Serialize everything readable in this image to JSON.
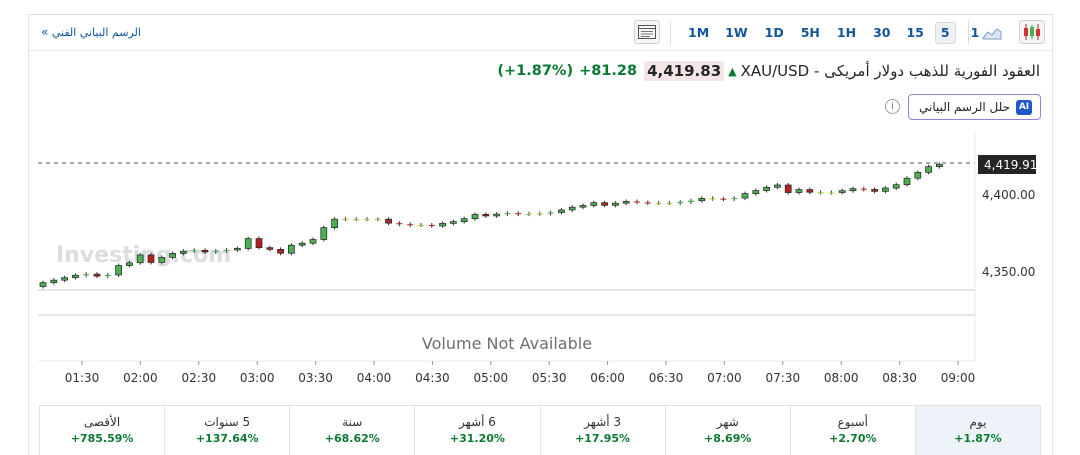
{
  "toolbar": {
    "technical_link": "الرسم البياني الفني",
    "timeframes": [
      "1M",
      "1W",
      "1D",
      "5H",
      "1H",
      "30",
      "15",
      "5",
      "1"
    ],
    "active_timeframe": "5"
  },
  "instrument": {
    "title": "XAU/USD - العقود الفورية للذهب دولار أمريكى",
    "price": "4,419.83",
    "change": "+81.28",
    "change_pct": "(+1.87%)",
    "direction": "up"
  },
  "ai_button": {
    "label": "حلل الرسم البياني",
    "badge": "AI"
  },
  "chart_data": {
    "type": "candlestick",
    "watermark": "Investing.com",
    "volume_text": "Volume Not Available",
    "last_price_label": "4,419.91",
    "y_ticks": [
      "4,400.00",
      "4,350.00"
    ],
    "y_tick_values": [
      4400,
      4350
    ],
    "x_ticks": [
      "01:30",
      "02:00",
      "02:30",
      "03:00",
      "03:30",
      "04:00",
      "04:30",
      "05:00",
      "05:30",
      "06:00",
      "06:30",
      "07:00",
      "07:30",
      "08:00",
      "08:30",
      "09:00"
    ],
    "candles": [
      {
        "o": 4340.6,
        "c": 4343.1
      },
      {
        "o": 4343.1,
        "c": 4344.7
      },
      {
        "o": 4344.7,
        "c": 4346.3
      },
      {
        "o": 4346.3,
        "c": 4347.9
      },
      {
        "o": 4347.9,
        "c": 4348.6
      },
      {
        "o": 4348.6,
        "c": 4347.3
      },
      {
        "o": 4347.3,
        "c": 4348.1
      },
      {
        "o": 4348.1,
        "c": 4354.2
      },
      {
        "o": 4354.2,
        "c": 4356.0
      },
      {
        "o": 4356.0,
        "c": 4361.1
      },
      {
        "o": 4361.1,
        "c": 4356.2
      },
      {
        "o": 4356.2,
        "c": 4359.5
      },
      {
        "o": 4359.5,
        "c": 4362.1
      },
      {
        "o": 4362.1,
        "c": 4363.5
      },
      {
        "o": 4363.5,
        "c": 4364.1
      },
      {
        "o": 4364.1,
        "c": 4363.0
      },
      {
        "o": 4363.0,
        "c": 4363.7
      },
      {
        "o": 4363.7,
        "c": 4364.3
      },
      {
        "o": 4364.3,
        "c": 4365.3
      },
      {
        "o": 4365.3,
        "c": 4371.7
      },
      {
        "o": 4371.7,
        "c": 4365.8
      },
      {
        "o": 4365.8,
        "c": 4364.7
      },
      {
        "o": 4364.7,
        "c": 4362.2
      },
      {
        "o": 4362.2,
        "c": 4367.4
      },
      {
        "o": 4367.4,
        "c": 4368.7
      },
      {
        "o": 4368.7,
        "c": 4371.1
      },
      {
        "o": 4371.1,
        "c": 4378.8
      },
      {
        "o": 4378.8,
        "c": 4384.3
      },
      {
        "o": 4384.3,
        "c": 4384.3
      },
      {
        "o": 4384.3,
        "c": 4384.3
      },
      {
        "o": 4384.3,
        "c": 4384.3
      },
      {
        "o": 4384.3,
        "c": 4384.3
      },
      {
        "o": 4384.3,
        "c": 4381.7
      },
      {
        "o": 4381.7,
        "c": 4381.0
      },
      {
        "o": 4381.0,
        "c": 4380.5
      },
      {
        "o": 4380.5,
        "c": 4380.5
      },
      {
        "o": 4380.5,
        "c": 4379.9
      },
      {
        "o": 4379.9,
        "c": 4381.6
      },
      {
        "o": 4381.6,
        "c": 4382.7
      },
      {
        "o": 4382.7,
        "c": 4384.6
      },
      {
        "o": 4384.6,
        "c": 4387.4
      },
      {
        "o": 4387.4,
        "c": 4386.4
      },
      {
        "o": 4386.4,
        "c": 4387.6
      },
      {
        "o": 4387.6,
        "c": 4388.2
      },
      {
        "o": 4388.2,
        "c": 4387.6
      },
      {
        "o": 4387.6,
        "c": 4387.8
      },
      {
        "o": 4387.8,
        "c": 4387.9
      },
      {
        "o": 4387.9,
        "c": 4388.6
      },
      {
        "o": 4388.6,
        "c": 4390.3
      },
      {
        "o": 4390.3,
        "c": 4392.1
      },
      {
        "o": 4392.1,
        "c": 4393.2
      },
      {
        "o": 4393.2,
        "c": 4395.0
      },
      {
        "o": 4395.0,
        "c": 4393.3
      },
      {
        "o": 4393.3,
        "c": 4394.7
      },
      {
        "o": 4394.7,
        "c": 4395.8
      },
      {
        "o": 4395.8,
        "c": 4395.2
      },
      {
        "o": 4395.2,
        "c": 4394.7
      },
      {
        "o": 4394.7,
        "c": 4394.7
      },
      {
        "o": 4394.7,
        "c": 4394.7
      },
      {
        "o": 4394.7,
        "c": 4395.4
      },
      {
        "o": 4395.4,
        "c": 4396.3
      },
      {
        "o": 4396.3,
        "c": 4397.8
      },
      {
        "o": 4397.8,
        "c": 4397.6
      },
      {
        "o": 4397.6,
        "c": 4397.3
      },
      {
        "o": 4397.3,
        "c": 4398.0
      },
      {
        "o": 4398.0,
        "c": 4400.9
      },
      {
        "o": 4400.9,
        "c": 4402.9
      },
      {
        "o": 4402.9,
        "c": 4405.0
      },
      {
        "o": 4405.0,
        "c": 4406.5
      },
      {
        "o": 4406.5,
        "c": 4401.6
      },
      {
        "o": 4401.6,
        "c": 4403.5
      },
      {
        "o": 4403.5,
        "c": 4401.8
      },
      {
        "o": 4401.8,
        "c": 4401.6
      },
      {
        "o": 4401.6,
        "c": 4401.6
      },
      {
        "o": 4401.6,
        "c": 4402.8
      },
      {
        "o": 4402.8,
        "c": 4404.1
      },
      {
        "o": 4404.1,
        "c": 4403.6
      },
      {
        "o": 4403.6,
        "c": 4402.4
      },
      {
        "o": 4402.4,
        "c": 4404.5
      },
      {
        "o": 4404.5,
        "c": 4406.7
      },
      {
        "o": 4406.7,
        "c": 4410.9
      },
      {
        "o": 4410.9,
        "c": 4414.7
      },
      {
        "o": 4414.7,
        "c": 4418.4
      },
      {
        "o": 4418.4,
        "c": 4419.9
      }
    ]
  },
  "performance": [
    {
      "label": "يوم",
      "value": "+1.87%"
    },
    {
      "label": "أسبوع",
      "value": "+2.70%"
    },
    {
      "label": "شهر",
      "value": "+8.69%"
    },
    {
      "label": "3 أشهر",
      "value": "+17.95%"
    },
    {
      "label": "6 أشهر",
      "value": "+31.20%"
    },
    {
      "label": "سنة",
      "value": "+68.62%"
    },
    {
      "label": "5 سنوات",
      "value": "+137.64%"
    },
    {
      "label": "الأقصى",
      "value": "+785.59%"
    }
  ],
  "colors": {
    "up": "#4caf50",
    "down": "#b22222",
    "flat": "#9acd32",
    "positive_text": "#0a7a31",
    "link": "#1256a0"
  }
}
